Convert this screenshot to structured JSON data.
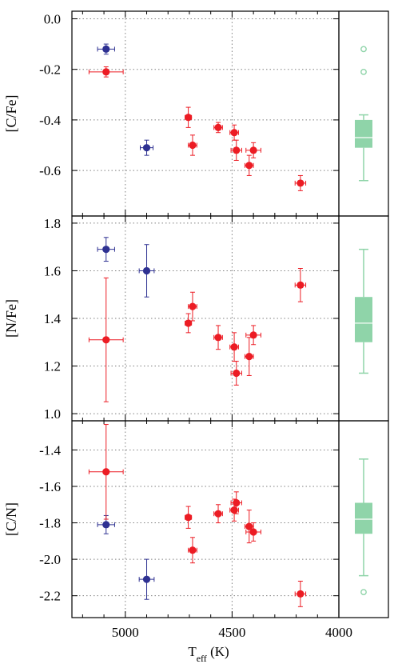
{
  "colors": {
    "red": "#ec1c24",
    "blue": "#2e3192",
    "box": "#8fd4a9",
    "grid": "#808080"
  },
  "x_axis": {
    "label_main": "T",
    "label_sub": "eff",
    "label_unit": " (K)",
    "ticks": [
      5000,
      4500,
      4000
    ],
    "tick_labels": [
      "5000",
      "4500",
      "4000"
    ],
    "reversed": true
  },
  "chart_data": [
    {
      "type": "scatter",
      "ylabel": "[C/Fe]",
      "xlim": [
        5250,
        4000
      ],
      "ylim": [
        -0.78,
        0.03
      ],
      "yticks": [
        0.0,
        -0.2,
        -0.4,
        -0.6
      ],
      "ytick_labels": [
        "0.0",
        "-0.2",
        "-0.4",
        "-0.6"
      ],
      "grid": true,
      "series": [
        {
          "color": "blue",
          "points": [
            {
              "x": 5090,
              "y": -0.12,
              "xerr": 40,
              "yerr": 0.02
            },
            {
              "x": 4900,
              "y": -0.51,
              "xerr": 30,
              "yerr": 0.03
            }
          ]
        },
        {
          "color": "red",
          "points": [
            {
              "x": 5090,
              "y": -0.21,
              "xerr": 80,
              "yerr": 0.02
            },
            {
              "x": 4705,
              "y": -0.39,
              "xerr": 15,
              "yerr": 0.04
            },
            {
              "x": 4685,
              "y": -0.5,
              "xerr": 20,
              "yerr": 0.04
            },
            {
              "x": 4565,
              "y": -0.43,
              "xerr": 20,
              "yerr": 0.02
            },
            {
              "x": 4490,
              "y": -0.45,
              "xerr": 20,
              "yerr": 0.03
            },
            {
              "x": 4480,
              "y": -0.52,
              "xerr": 25,
              "yerr": 0.04
            },
            {
              "x": 4420,
              "y": -0.58,
              "xerr": 20,
              "yerr": 0.04
            },
            {
              "x": 4400,
              "y": -0.52,
              "xerr": 35,
              "yerr": 0.03
            },
            {
              "x": 4180,
              "y": -0.65,
              "xerr": 25,
              "yerr": 0.03
            }
          ]
        }
      ],
      "boxplot": {
        "whisker_low": -0.64,
        "q1": -0.51,
        "median": -0.47,
        "q3": -0.4,
        "whisker_high": -0.38,
        "outliers": [
          -0.12,
          -0.21
        ]
      }
    },
    {
      "type": "scatter",
      "ylabel": "[N/Fe]",
      "xlim": [
        5250,
        4000
      ],
      "ylim": [
        0.97,
        1.83
      ],
      "yticks": [
        1.0,
        1.2,
        1.4,
        1.6,
        1.8
      ],
      "ytick_labels": [
        "1.0",
        "1.2",
        "1.4",
        "1.6",
        "1.8"
      ],
      "grid": true,
      "series": [
        {
          "color": "blue",
          "points": [
            {
              "x": 5090,
              "y": 1.69,
              "xerr": 40,
              "yerr": 0.05
            },
            {
              "x": 4900,
              "y": 1.6,
              "xerr": 35,
              "yerr": 0.11
            }
          ]
        },
        {
          "color": "red",
          "points": [
            {
              "x": 5090,
              "y": 1.31,
              "xerr": 80,
              "yerr": 0.26
            },
            {
              "x": 4705,
              "y": 1.38,
              "xerr": 15,
              "yerr": 0.04
            },
            {
              "x": 4685,
              "y": 1.45,
              "xerr": 20,
              "yerr": 0.06
            },
            {
              "x": 4565,
              "y": 1.32,
              "xerr": 20,
              "yerr": 0.05
            },
            {
              "x": 4490,
              "y": 1.28,
              "xerr": 20,
              "yerr": 0.06
            },
            {
              "x": 4480,
              "y": 1.17,
              "xerr": 25,
              "yerr": 0.05
            },
            {
              "x": 4420,
              "y": 1.24,
              "xerr": 20,
              "yerr": 0.08
            },
            {
              "x": 4400,
              "y": 1.33,
              "xerr": 35,
              "yerr": 0.04
            },
            {
              "x": 4180,
              "y": 1.54,
              "xerr": 25,
              "yerr": 0.07
            }
          ]
        }
      ],
      "boxplot": {
        "whisker_low": 1.17,
        "q1": 1.3,
        "median": 1.38,
        "q3": 1.49,
        "whisker_high": 1.69,
        "outliers": []
      }
    },
    {
      "type": "scatter",
      "ylabel": "[C/N]",
      "xlim": [
        5250,
        4000
      ],
      "ylim": [
        -2.32,
        -1.24
      ],
      "yticks": [
        -1.4,
        -1.6,
        -1.8,
        -2.0,
        -2.2
      ],
      "ytick_labels": [
        "-1.4",
        "-1.6",
        "-1.8",
        "-2.0",
        "-2.2"
      ],
      "grid": true,
      "series": [
        {
          "color": "blue",
          "points": [
            {
              "x": 5090,
              "y": -1.81,
              "xerr": 40,
              "yerr": 0.05
            },
            {
              "x": 4900,
              "y": -2.11,
              "xerr": 35,
              "yerr": 0.11
            }
          ]
        },
        {
          "color": "red",
          "points": [
            {
              "x": 5090,
              "y": -1.52,
              "xerr": 80,
              "yerr": 0.26
            },
            {
              "x": 4705,
              "y": -1.77,
              "xerr": 15,
              "yerr": 0.06
            },
            {
              "x": 4685,
              "y": -1.95,
              "xerr": 20,
              "yerr": 0.07
            },
            {
              "x": 4565,
              "y": -1.75,
              "xerr": 20,
              "yerr": 0.05
            },
            {
              "x": 4490,
              "y": -1.73,
              "xerr": 20,
              "yerr": 0.06
            },
            {
              "x": 4480,
              "y": -1.69,
              "xerr": 25,
              "yerr": 0.06
            },
            {
              "x": 4420,
              "y": -1.82,
              "xerr": 20,
              "yerr": 0.09
            },
            {
              "x": 4400,
              "y": -1.85,
              "xerr": 35,
              "yerr": 0.05
            },
            {
              "x": 4180,
              "y": -2.19,
              "xerr": 25,
              "yerr": 0.07
            }
          ]
        }
      ],
      "boxplot": {
        "whisker_low": -2.09,
        "q1": -1.86,
        "median": -1.78,
        "q3": -1.69,
        "whisker_high": -1.45,
        "outliers": [
          -2.18
        ]
      }
    }
  ]
}
